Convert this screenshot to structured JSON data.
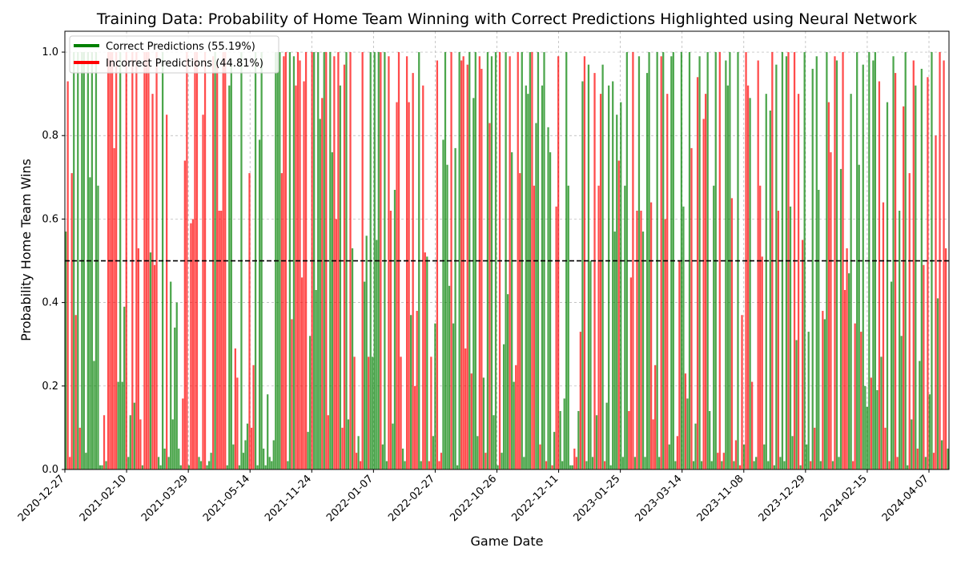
{
  "chart_data": {
    "type": "bar",
    "title": "Training Data: Probability of Home Team Winning with Correct Predictions Highlighted using Neural Network",
    "xlabel": "Game Date",
    "ylabel": "Probability Home Team Wins",
    "ylim": [
      0,
      1.05
    ],
    "yticks": [
      "0.0",
      "0.2",
      "0.4",
      "0.6",
      "0.8",
      "1.0"
    ],
    "xticks": [
      "2020-12-27",
      "2021-02-10",
      "2021-03-29",
      "2021-05-14",
      "2021-11-24",
      "2022-01-07",
      "2022-02-27",
      "2022-10-26",
      "2022-12-11",
      "2023-01-25",
      "2023-03-14",
      "2023-11-08",
      "2023-12-29",
      "2024-02-15",
      "2024-04-07"
    ],
    "threshold": 0.5,
    "grid": true,
    "legend_position": "upper-left",
    "series": [
      {
        "name": "Correct Predictions (55.19%)",
        "color": "#008000"
      },
      {
        "name": "Incorrect Predictions (44.81%)",
        "color": "#ff0000"
      }
    ],
    "bar_count": 432,
    "values": [
      0.57,
      0.93,
      0.03,
      0.71,
      1.0,
      0.37,
      1.0,
      0.1,
      1.0,
      1.0,
      0.04,
      1.0,
      0.7,
      1.0,
      0.26,
      1.0,
      0.68,
      0.01,
      0.01,
      0.13,
      0.02,
      1.0,
      1.0,
      1.0,
      0.77,
      1.0,
      0.21,
      1.0,
      0.21,
      0.39,
      1.0,
      0.03,
      0.13,
      1.0,
      0.16,
      1.0,
      0.53,
      0.12,
      0.01,
      1.0,
      1.0,
      1.0,
      0.52,
      0.9,
      0.49,
      1.0,
      0.03,
      0.01,
      1.0,
      0.05,
      0.85,
      0.03,
      0.45,
      0.12,
      0.34,
      0.4,
      0.05,
      0.01,
      0.17,
      0.74,
      1.0,
      0.01,
      0.59,
      0.6,
      1.0,
      1.0,
      0.03,
      0.02,
      0.85,
      1.0,
      0.01,
      0.02,
      0.04,
      0.99,
      1.0,
      0.97,
      0.62,
      0.62,
      1.0,
      1.0,
      0.01,
      0.92,
      0.97,
      0.06,
      0.29,
      0.22,
      0.01,
      1.0,
      0.04,
      0.07,
      0.11,
      0.71,
      0.1,
      0.25,
      1.0,
      0.01,
      0.79,
      1.0,
      0.05,
      0.01,
      0.18,
      0.03,
      0.02,
      0.07,
      1.0,
      1.0,
      1.0,
      0.71,
      0.99,
      1.0,
      0.02,
      1.0,
      0.36,
      0.99,
      0.92,
      1.0,
      0.98,
      0.46,
      0.93,
      1.0,
      0.09,
      0.32,
      1.0,
      1.0,
      0.43,
      1.0,
      0.84,
      0.89,
      1.0,
      1.0,
      0.13,
      1.0,
      0.76,
      0.99,
      0.6,
      1.0,
      0.92,
      0.1,
      0.97,
      1.0,
      0.12,
      1.0,
      0.53,
      0.27,
      0.04,
      0.08,
      0.02,
      1.0,
      0.45,
      0.56,
      0.27,
      1.0,
      0.27,
      1.0,
      0.55,
      1.0,
      1.0,
      0.06,
      1.0,
      0.02,
      0.99,
      0.62,
      0.11,
      0.67,
      0.88,
      1.0,
      0.27,
      0.05,
      0.02,
      0.99,
      0.88,
      0.37,
      0.95,
      0.2,
      0.38,
      1.0,
      0.02,
      0.92,
      0.52,
      0.51,
      0.02,
      0.27,
      0.08,
      0.35,
      0.98,
      0.02,
      0.04,
      0.79,
      1.0,
      0.73,
      0.44,
      1.0,
      0.35,
      0.77,
      0.01,
      1.0,
      0.98,
      0.99,
      0.29,
      0.97,
      1.0,
      0.23,
      0.89,
      1.0,
      0.08,
      0.99,
      0.96,
      0.22,
      0.04,
      1.0,
      0.83,
      0.99,
      0.13,
      1.0,
      0.01,
      1.0,
      0.04,
      0.3,
      1.0,
      0.42,
      0.99,
      0.76,
      0.21,
      0.25,
      1.0,
      0.71,
      1.0,
      0.03,
      0.92,
      0.9,
      1.0,
      1.0,
      0.68,
      0.83,
      1.0,
      0.06,
      0.92,
      1.0,
      0.02,
      0.82,
      0.76,
      0.01,
      0.09,
      0.63,
      0.99,
      0.14,
      0.02,
      0.17,
      1.0,
      0.68,
      0.01,
      0.01,
      0.05,
      0.03,
      0.14,
      0.33,
      0.93,
      0.99,
      0.02,
      0.97,
      0.5,
      0.03,
      0.95,
      0.13,
      0.68,
      0.9,
      0.97,
      0.02,
      0.16,
      0.92,
      0.01,
      0.93,
      0.57,
      0.85,
      0.74,
      0.88,
      0.03,
      0.68,
      1.0,
      0.14,
      0.46,
      1.0,
      0.03,
      0.62,
      0.99,
      0.62,
      0.57,
      0.03,
      0.95,
      1.0,
      0.64,
      0.12,
      0.25,
      1.0,
      0.03,
      0.99,
      1.0,
      0.6,
      0.9,
      0.06,
      0.99,
      1.0,
      0.02,
      0.08,
      0.5,
      1.0,
      0.63,
      0.23,
      0.17,
      1.0,
      0.77,
      0.02,
      0.11,
      0.94,
      0.99,
      0.02,
      0.84,
      0.9,
      1.0,
      0.14,
      0.02,
      0.68,
      1.0,
      0.04,
      1.0,
      0.02,
      0.04,
      0.98,
      0.92,
      1.0,
      0.65,
      0.02,
      0.07,
      1.0,
      0.01,
      0.37,
      0.06,
      1.0,
      0.92,
      0.89,
      0.21,
      0.02,
      0.03,
      0.98,
      0.68,
      0.51,
      0.06,
      0.9,
      0.02,
      0.86,
      1.0,
      0.01,
      0.97,
      0.62,
      0.03,
      1.0,
      0.02,
      0.99,
      1.0,
      0.63,
      0.08,
      1.0,
      0.31,
      0.9,
      0.01,
      0.55,
      1.0,
      0.06,
      0.33,
      0.02,
      0.96,
      0.1,
      0.99,
      0.67,
      0.02,
      0.38,
      0.36,
      1.0,
      0.88,
      0.76,
      0.02,
      0.99,
      0.98,
      0.03,
      0.72,
      1.0,
      0.43,
      0.53,
      0.47,
      0.9,
      0.02,
      0.35,
      1.0,
      0.73,
      0.33,
      0.97,
      0.2,
      0.15,
      1.0,
      0.22,
      0.98,
      1.0,
      0.19,
      0.93,
      0.27,
      0.64,
      0.1,
      0.88,
      0.02,
      0.45,
      0.99,
      0.95,
      0.03,
      0.62,
      0.32,
      0.87,
      1.0,
      0.01,
      0.71,
      0.12,
      0.98,
      0.92,
      0.05,
      0.26,
      0.96,
      0.49,
      0.03,
      0.94,
      0.18,
      1.0,
      0.04,
      0.8,
      0.41,
      1.0,
      0.07,
      0.98,
      0.53,
      0.05
    ],
    "correct": [
      1,
      0,
      0,
      0,
      1,
      0,
      1,
      0,
      1,
      1,
      1,
      1,
      1,
      1,
      1,
      1,
      1,
      1,
      1,
      0,
      1,
      0,
      0,
      0,
      0,
      0,
      1,
      1,
      1,
      1,
      0,
      1,
      1,
      0,
      1,
      0,
      0,
      0,
      1,
      0,
      0,
      0,
      1,
      0,
      0,
      0,
      1,
      1,
      1,
      1,
      0,
      1,
      1,
      1,
      1,
      1,
      1,
      1,
      0,
      0,
      0,
      1,
      0,
      0,
      0,
      0,
      1,
      1,
      0,
      0,
      1,
      1,
      1,
      0,
      1,
      0,
      0,
      0,
      0,
      0,
      1,
      1,
      1,
      1,
      0,
      0,
      1,
      1,
      1,
      1,
      1,
      0,
      0,
      0,
      1,
      1,
      1,
      1,
      1,
      1,
      1,
      1,
      1,
      1,
      1,
      1,
      1,
      0,
      0,
      0,
      1,
      1,
      0,
      1,
      0,
      0,
      0,
      0,
      0,
      0,
      1,
      1,
      0,
      1,
      1,
      1,
      1,
      0,
      1,
      0,
      0,
      1,
      1,
      0,
      0,
      0,
      1,
      0,
      0,
      1,
      1,
      0,
      1,
      0,
      0,
      1,
      0,
      0,
      1,
      1,
      0,
      1,
      1,
      1,
      1,
      1,
      0,
      1,
      1,
      1,
      0,
      0,
      1,
      1,
      0,
      0,
      0,
      1,
      1,
      0,
      0,
      1,
      0,
      0,
      0,
      1,
      1,
      0,
      0,
      1,
      0,
      0,
      1,
      1,
      0,
      0,
      0,
      1,
      1,
      1,
      1,
      0,
      1,
      1,
      1,
      1,
      0,
      0,
      0,
      0,
      1,
      0,
      1,
      1,
      1,
      0,
      0,
      1,
      0,
      1,
      0,
      1,
      1,
      1,
      1,
      0,
      1,
      1,
      1,
      1,
      0,
      1,
      1,
      0,
      0,
      0,
      1,
      1,
      1,
      1,
      1,
      0,
      0,
      1,
      1,
      0,
      1,
      1,
      0,
      1,
      1,
      0,
      1,
      0,
      0,
      1,
      1,
      1,
      1,
      1,
      1,
      1,
      0,
      0,
      1,
      0,
      1,
      0,
      1,
      1,
      1,
      1,
      0,
      1,
      0,
      0,
      1,
      0,
      1,
      1,
      1,
      1,
      1,
      1,
      0,
      1,
      1,
      1,
      1,
      0,
      0,
      0,
      1,
      0,
      1,
      0,
      1,
      1,
      1,
      1,
      0,
      0,
      0,
      1,
      1,
      0,
      1,
      0,
      0,
      1,
      1,
      1,
      1,
      0,
      0,
      1,
      1,
      0,
      1,
      1,
      0,
      1,
      1,
      0,
      1,
      1,
      0,
      0,
      1,
      1,
      1,
      1,
      1,
      0,
      0,
      1,
      0,
      1,
      1,
      1,
      0,
      1,
      0,
      1,
      0,
      0,
      1,
      0,
      0,
      1,
      0,
      1,
      1,
      0,
      0,
      0,
      1,
      1,
      1,
      1,
      0,
      1,
      1,
      0,
      1,
      1,
      1,
      1,
      0,
      1,
      1,
      0,
      1,
      0,
      1,
      0,
      1,
      1,
      1,
      0,
      1,
      0,
      1,
      1,
      1,
      0,
      1,
      1,
      0,
      0,
      1,
      0,
      1,
      1,
      1,
      0,
      0,
      0,
      1,
      1,
      0,
      0,
      1,
      1,
      0,
      1,
      1,
      1,
      1,
      0,
      1,
      1,
      1,
      0,
      1,
      0,
      0,
      1,
      0,
      1,
      1,
      0,
      0,
      1,
      1,
      0,
      1,
      1,
      0,
      1,
      0,
      1,
      0,
      1,
      1,
      0,
      1,
      0,
      1,
      1,
      0,
      0,
      1,
      0,
      1,
      0,
      0,
      1,
      0
    ]
  }
}
